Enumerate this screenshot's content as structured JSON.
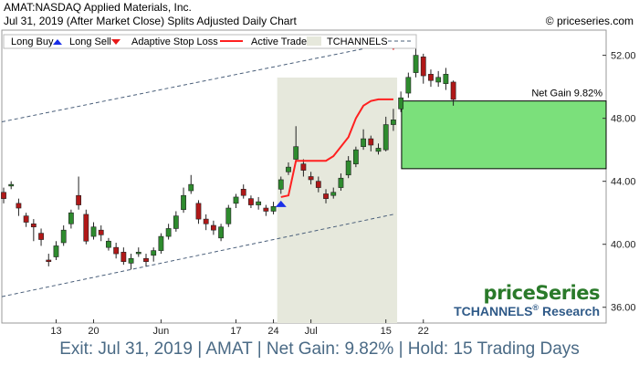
{
  "header": {
    "line1": "AMAT:NASDAQ Applied Materials, Inc.",
    "line2": "Jul 31, 2019 (After Market Close)  Splits Adjusted Daily Chart",
    "credit": "© priceseries.com"
  },
  "legend": {
    "long_buy": "Long Buy",
    "long_sell": "Long Sell",
    "stop": "Adaptive Stop Loss",
    "active": "Active Trade",
    "channels": "TCHANNELS"
  },
  "annotation": {
    "net_gain": "Net Gain 9.82%"
  },
  "brand": {
    "name": "priceSeries",
    "sub": "TCHANNELS",
    "reg": "®",
    "sub2": " Research"
  },
  "footer": {
    "text": "Exit: Jul 31, 2019 | AMAT | Net Gain: 9.82% | Hold: 15 Trading Days"
  },
  "colors": {
    "up": "#2e8b2e",
    "down": "#b01818",
    "stop": "#ff2020",
    "active_bg": "#e6e8dc",
    "gain": "#7be07b",
    "channel": "#4a5f7a",
    "brand": "#2a7a2a",
    "footer": "#4a6a85"
  },
  "chart_data": {
    "type": "candlestick",
    "ylim": [
      35,
      53.6
    ],
    "y_ticks": [
      "52.00",
      "48.00",
      "44.00",
      "40.00",
      "36.00"
    ],
    "x_ticks": [
      "13",
      "20",
      "Jun",
      "17",
      "24",
      "Jul",
      "15",
      "22"
    ],
    "candles": [
      {
        "o": 43.3,
        "c": 42.9,
        "h": 43.6,
        "l": 42.6
      },
      {
        "o": 43.7,
        "c": 43.8,
        "h": 44.0,
        "l": 43.5
      },
      {
        "o": 42.6,
        "c": 42.3,
        "h": 42.9,
        "l": 41.8
      },
      {
        "o": 41.8,
        "c": 41.4,
        "h": 42.0,
        "l": 41.1
      },
      {
        "o": 41.3,
        "c": 41.1,
        "h": 41.6,
        "l": 40.2
      },
      {
        "o": 40.7,
        "c": 40.3,
        "h": 41.0,
        "l": 39.9
      },
      {
        "o": 39.0,
        "c": 38.9,
        "h": 39.4,
        "l": 38.6
      },
      {
        "o": 39.2,
        "c": 39.9,
        "h": 40.2,
        "l": 39.0
      },
      {
        "o": 40.1,
        "c": 40.9,
        "h": 41.2,
        "l": 39.9
      },
      {
        "o": 41.3,
        "c": 42.0,
        "h": 42.2,
        "l": 41.0
      },
      {
        "o": 43.1,
        "c": 42.5,
        "h": 44.3,
        "l": 42.2
      },
      {
        "o": 41.9,
        "c": 40.2,
        "h": 42.2,
        "l": 40.0
      },
      {
        "o": 40.5,
        "c": 41.1,
        "h": 41.4,
        "l": 40.3
      },
      {
        "o": 40.9,
        "c": 40.6,
        "h": 41.2,
        "l": 40.2
      },
      {
        "o": 39.8,
        "c": 40.2,
        "h": 40.4,
        "l": 39.6
      },
      {
        "o": 39.8,
        "c": 39.4,
        "h": 40.1,
        "l": 39.1
      },
      {
        "o": 39.5,
        "c": 38.9,
        "h": 39.8,
        "l": 38.7
      },
      {
        "o": 38.8,
        "c": 39.1,
        "h": 39.4,
        "l": 38.4
      },
      {
        "o": 39.4,
        "c": 39.5,
        "h": 39.8,
        "l": 39.2
      },
      {
        "o": 39.1,
        "c": 38.9,
        "h": 39.4,
        "l": 38.6
      },
      {
        "o": 39.3,
        "c": 39.6,
        "h": 39.8,
        "l": 38.9
      },
      {
        "o": 39.6,
        "c": 40.5,
        "h": 40.7,
        "l": 39.4
      },
      {
        "o": 40.5,
        "c": 41.0,
        "h": 41.3,
        "l": 40.3
      },
      {
        "o": 41.0,
        "c": 41.8,
        "h": 42.1,
        "l": 40.8
      },
      {
        "o": 42.2,
        "c": 43.1,
        "h": 43.6,
        "l": 42.0
      },
      {
        "o": 43.4,
        "c": 43.8,
        "h": 44.4,
        "l": 43.2
      },
      {
        "o": 42.6,
        "c": 41.6,
        "h": 42.8,
        "l": 41.3
      },
      {
        "o": 41.6,
        "c": 41.3,
        "h": 41.9,
        "l": 40.9
      },
      {
        "o": 41.2,
        "c": 40.9,
        "h": 41.5,
        "l": 40.6
      },
      {
        "o": 40.4,
        "c": 41.1,
        "h": 41.3,
        "l": 40.2
      },
      {
        "o": 41.3,
        "c": 42.3,
        "h": 42.5,
        "l": 41.1
      },
      {
        "o": 42.6,
        "c": 43.0,
        "h": 43.2,
        "l": 42.3
      },
      {
        "o": 43.5,
        "c": 43.1,
        "h": 43.8,
        "l": 42.9
      },
      {
        "o": 42.9,
        "c": 42.5,
        "h": 43.1,
        "l": 42.3
      },
      {
        "o": 42.5,
        "c": 42.7,
        "h": 43.0,
        "l": 42.2
      },
      {
        "o": 42.3,
        "c": 42.1,
        "h": 42.5,
        "l": 41.8
      },
      {
        "o": 42.1,
        "c": 42.4,
        "h": 42.7,
        "l": 41.9
      },
      {
        "o": 43.5,
        "c": 44.1,
        "h": 44.3,
        "l": 43.2
      },
      {
        "o": 44.6,
        "c": 44.9,
        "h": 45.2,
        "l": 44.4
      },
      {
        "o": 45.4,
        "c": 46.2,
        "h": 47.5,
        "l": 45.2
      },
      {
        "o": 45.1,
        "c": 44.7,
        "h": 45.4,
        "l": 44.3
      },
      {
        "o": 44.3,
        "c": 44.1,
        "h": 44.6,
        "l": 43.8
      },
      {
        "o": 44.0,
        "c": 43.6,
        "h": 44.3,
        "l": 43.3
      },
      {
        "o": 43.2,
        "c": 42.9,
        "h": 43.5,
        "l": 42.6
      },
      {
        "o": 43.1,
        "c": 43.3,
        "h": 43.6,
        "l": 42.9
      },
      {
        "o": 43.6,
        "c": 44.2,
        "h": 44.5,
        "l": 43.4
      },
      {
        "o": 44.4,
        "c": 45.3,
        "h": 45.6,
        "l": 44.2
      },
      {
        "o": 45.1,
        "c": 46.0,
        "h": 46.2,
        "l": 44.9
      },
      {
        "o": 46.2,
        "c": 46.7,
        "h": 47.3,
        "l": 46.0
      },
      {
        "o": 46.7,
        "c": 46.3,
        "h": 46.9,
        "l": 45.9
      },
      {
        "o": 45.9,
        "c": 46.1,
        "h": 46.4,
        "l": 45.7
      },
      {
        "o": 46.0,
        "c": 47.6,
        "h": 48.1,
        "l": 45.9
      },
      {
        "o": 47.6,
        "c": 47.9,
        "h": 48.6,
        "l": 47.2
      },
      {
        "o": 48.6,
        "c": 49.3,
        "h": 49.7,
        "l": 48.4
      },
      {
        "o": 49.6,
        "c": 50.6,
        "h": 50.9,
        "l": 49.3
      },
      {
        "o": 50.9,
        "c": 52.0,
        "h": 52.5,
        "l": 50.6
      },
      {
        "o": 51.9,
        "c": 50.7,
        "h": 52.1,
        "l": 50.2
      },
      {
        "o": 50.8,
        "c": 50.4,
        "h": 51.1,
        "l": 50.0
      },
      {
        "o": 50.3,
        "c": 50.6,
        "h": 51.0,
        "l": 50.0
      },
      {
        "o": 50.2,
        "c": 50.8,
        "h": 51.2,
        "l": 49.8
      },
      {
        "o": 50.3,
        "c": 49.2,
        "h": 50.4,
        "l": 48.8
      }
    ],
    "stop_loss": [
      {
        "i": 37,
        "v": 43.0
      },
      {
        "i": 38,
        "v": 43.1
      },
      {
        "i": 39,
        "v": 45.3
      },
      {
        "i": 40,
        "v": 45.3
      },
      {
        "i": 41,
        "v": 45.3
      },
      {
        "i": 42,
        "v": 45.3
      },
      {
        "i": 43,
        "v": 45.3
      },
      {
        "i": 44,
        "v": 45.6
      },
      {
        "i": 45,
        "v": 46.2
      },
      {
        "i": 46,
        "v": 46.8
      },
      {
        "i": 47,
        "v": 48.0
      },
      {
        "i": 48,
        "v": 48.8
      },
      {
        "i": 49,
        "v": 49.1
      },
      {
        "i": 50,
        "v": 49.2
      },
      {
        "i": 51,
        "v": 49.2
      },
      {
        "i": 52,
        "v": 49.2
      }
    ],
    "long_buy": {
      "i": 37,
      "v": 42.6
    },
    "long_sell": {
      "i": 52,
      "v": 52.5
    },
    "active_trade": {
      "start": 37,
      "end": 52
    },
    "gain_box": {
      "y_low": 44.8,
      "y_high": 49.1
    },
    "channel_upper": [
      {
        "i": 0,
        "v": 47.8
      },
      {
        "i": 52,
        "v": 52.8
      }
    ],
    "channel_lower": [
      {
        "i": 0,
        "v": 36.7
      },
      {
        "i": 52,
        "v": 41.9
      }
    ]
  }
}
